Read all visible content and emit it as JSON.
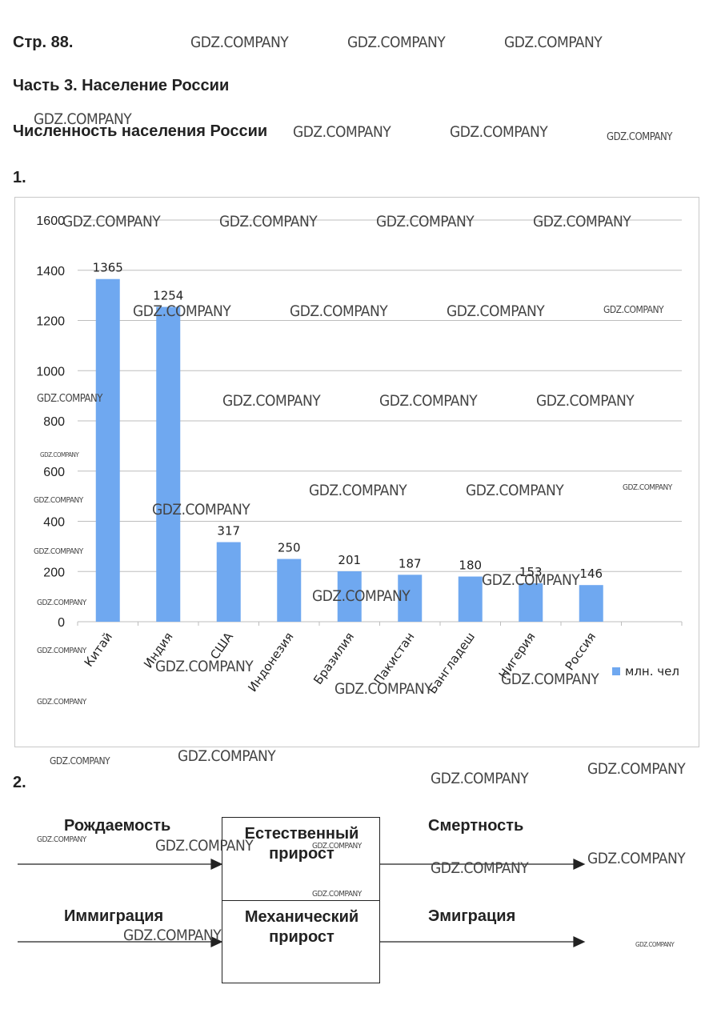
{
  "page": {
    "page_ref": "Стр. 88.",
    "part_title": "Часть 3. Население России",
    "section_title": "Численность населения России",
    "task1_label": "1.",
    "task2_label": "2."
  },
  "watermark": "GDZ.COMPANY",
  "chart_data": {
    "type": "bar",
    "categories": [
      "Китай",
      "Индия",
      "США",
      "Индонезия",
      "Бразилия",
      "Пакистан",
      "Бангладеш",
      "Нигерия",
      "Россия"
    ],
    "values": [
      1365,
      1254,
      317,
      250,
      201,
      187,
      180,
      153,
      146
    ],
    "data_labels": [
      "1365",
      "1254",
      "317",
      "250",
      "201",
      "187",
      "180",
      "153",
      "146"
    ],
    "series_name": "млн. чел",
    "ylim": [
      0,
      1600
    ],
    "yticks": [
      0,
      200,
      400,
      600,
      800,
      1000,
      1200,
      1400,
      1600
    ],
    "grid": true,
    "legend_position": "right",
    "color": "#6fa8f0"
  },
  "diagram": {
    "box_top": [
      "Естественный",
      "прирост"
    ],
    "box_bottom": [
      "Механический",
      "прирост"
    ],
    "left_top": "Рождаемость",
    "left_bottom": "Иммиграция",
    "right_top": "Смертность",
    "right_bottom": "Эмиграция"
  }
}
